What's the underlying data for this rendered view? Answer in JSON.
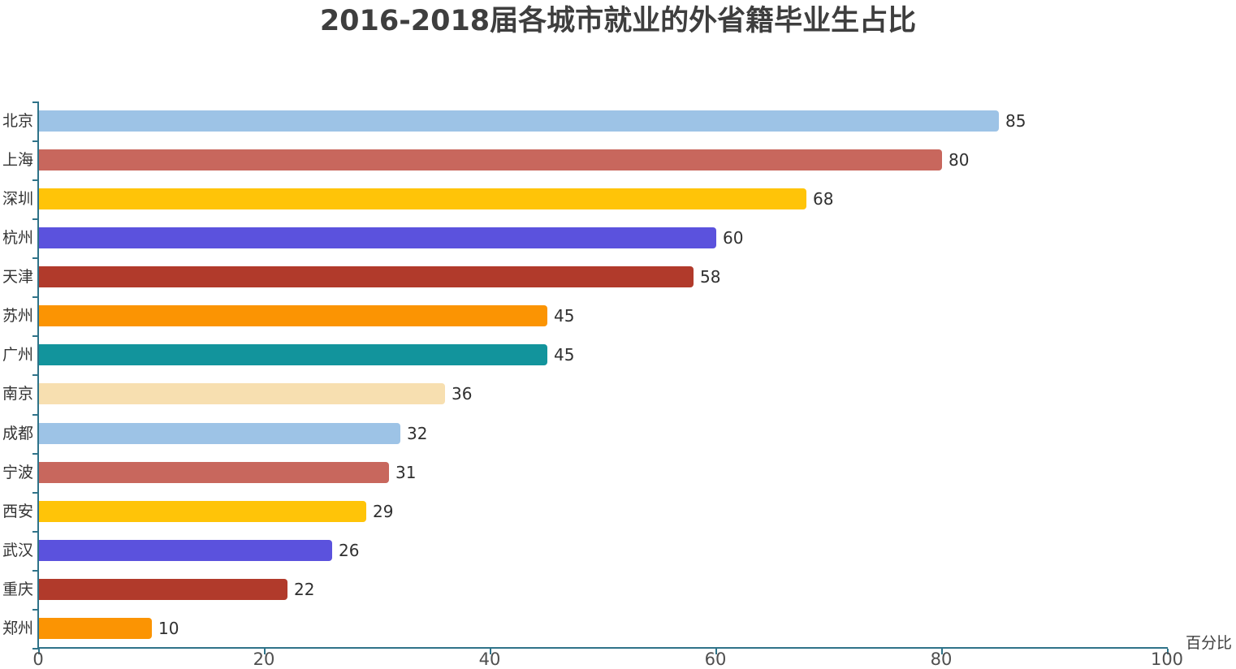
{
  "title": "2016-2018届各城市就业的外省籍毕业生占比",
  "chart_data": {
    "type": "bar",
    "orientation": "horizontal",
    "title": "2016-2018届各城市就业的外省籍毕业生占比",
    "xlabel": "百分比",
    "ylabel": "",
    "categories": [
      "北京",
      "上海",
      "深圳",
      "杭州",
      "天津",
      "苏州",
      "广州",
      "南京",
      "成都",
      "宁波",
      "西安",
      "武汉",
      "重庆",
      "郑州"
    ],
    "values": [
      85,
      80,
      68,
      60,
      58,
      45,
      45,
      36,
      32,
      31,
      29,
      26,
      22,
      10
    ],
    "bar_colors": [
      "#9dc3e6",
      "#c8675d",
      "#ffc408",
      "#5b52dd",
      "#b13a2b",
      "#fb9403",
      "#12949c",
      "#f7dfb0",
      "#9dc3e6",
      "#c8675d",
      "#ffc408",
      "#5b52dd",
      "#b13a2b",
      "#fb9403"
    ],
    "value_labels_shown": true,
    "x_ticks": [
      0,
      20,
      40,
      60,
      80,
      100
    ],
    "xlim": [
      0,
      100
    ],
    "grid": false,
    "colors": {
      "axis": "#2f7389",
      "title_text": "#3e3e3e",
      "category_label_text": "#333333",
      "value_label_text": "#303030",
      "tick_label_text": "#4f4f4f",
      "background": "#ffffff"
    }
  }
}
